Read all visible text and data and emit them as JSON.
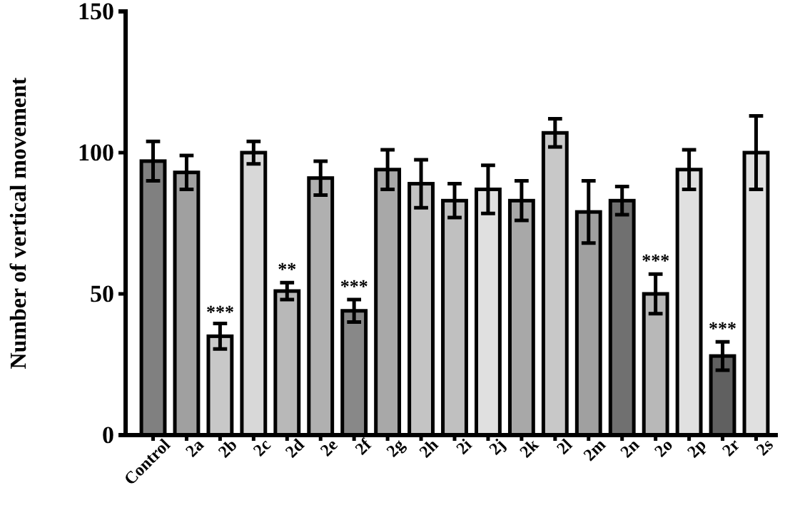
{
  "chart_data": {
    "type": "bar",
    "ylabel": "Number of vertical movement",
    "categories": [
      "Control",
      "2a",
      "2b",
      "2c",
      "2d",
      "2e",
      "2f",
      "2g",
      "2h",
      "2i",
      "2j",
      "2k",
      "2l",
      "2m",
      "2n",
      "2o",
      "2p",
      "2r",
      "2s"
    ],
    "values": [
      97,
      93,
      35,
      100,
      51,
      91,
      44,
      94,
      89,
      83,
      87,
      83,
      107,
      79,
      83,
      50,
      94,
      28,
      100
    ],
    "errors": [
      7,
      6,
      4.5,
      4,
      3,
      6,
      4,
      7,
      8.5,
      6,
      8.5,
      7,
      5,
      11,
      5,
      7,
      7,
      5,
      13
    ],
    "colors": [
      "#808080",
      "#a0a0a0",
      "#c8c8c8",
      "#d8d8d8",
      "#b8b8b8",
      "#b0b0b0",
      "#888888",
      "#a8a8a8",
      "#c4c4c4",
      "#c0c0c0",
      "#e0e0e0",
      "#a8a8a8",
      "#c8c8c8",
      "#a0a0a0",
      "#707070",
      "#b8b8b8",
      "#e0e0e0",
      "#606060",
      "#e0e0e0"
    ],
    "ylim": [
      0,
      150
    ],
    "yticks": [
      0,
      50,
      100,
      150
    ],
    "grid": false,
    "annotations": [
      {
        "text": "***",
        "x": "2b",
        "y": 40
      },
      {
        "text": "**",
        "x": "2d",
        "y": 55
      },
      {
        "text": "***",
        "x": "2f",
        "y": 49
      },
      {
        "text": "***",
        "x": "2o",
        "y": 58
      },
      {
        "text": "***",
        "x": "2r",
        "y": 34
      }
    ]
  }
}
